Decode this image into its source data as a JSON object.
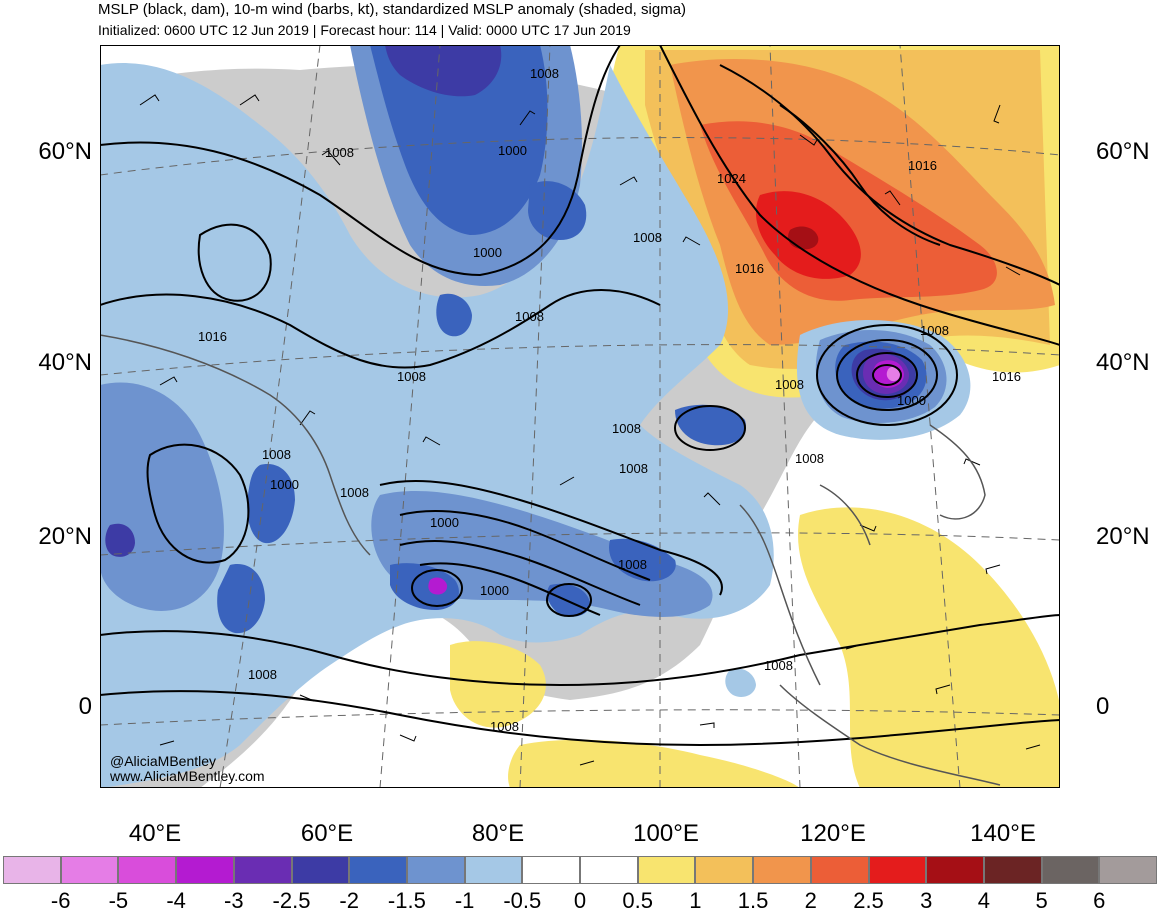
{
  "header": {
    "title": "MSLP (black, dam), 10-m wind (barbs, kt), standardized MSLP anomaly (shaded, sigma)",
    "subtitle": "Initialized: 0600 UTC 12 Jun 2019 | Forecast hour: 114 | Valid: 0000 UTC 17 Jun 2019"
  },
  "map": {
    "lat_labels": [
      "60°N",
      "40°N",
      "20°N",
      "0"
    ],
    "lon_labels": [
      "40°E",
      "60°E",
      "80°E",
      "100°E",
      "120°E",
      "140°E"
    ],
    "isobar_labels": [
      "1008",
      "1000",
      "1008",
      "1000",
      "1024",
      "1016",
      "1016",
      "1008",
      "1016",
      "1008",
      "1008",
      "1008",
      "1016",
      "1008",
      "1000",
      "1008",
      "1008",
      "1008",
      "1000",
      "1008",
      "1000",
      "1008",
      "1000",
      "1008",
      "1008",
      "1008",
      "1008",
      "1008"
    ],
    "credits": [
      "@AliciaMBentley",
      "www.AliciaMBentley.com"
    ],
    "land_color": "#cccccc",
    "ocean_color": "#ffffff"
  },
  "colorbar": {
    "ticks": [
      "-6",
      "-5",
      "-4",
      "-3",
      "-2.5",
      "-2",
      "-1.5",
      "-1",
      "-0.5",
      "0",
      "0.5",
      "1",
      "1.5",
      "2",
      "2.5",
      "3",
      "4",
      "5",
      "6"
    ],
    "colors": [
      "#e8b4e8",
      "#e57de6",
      "#d94ddb",
      "#b41bd1",
      "#6a2db3",
      "#3d3ba5",
      "#3a63bd",
      "#6e93cf",
      "#a5c8e6",
      "#ffffff",
      "#ffffff",
      "#f8e46f",
      "#f3c05a",
      "#f1954c",
      "#ec5e37",
      "#e41c1c",
      "#a50f15",
      "#6b2424",
      "#6b6462",
      "#a39b9b"
    ]
  }
}
